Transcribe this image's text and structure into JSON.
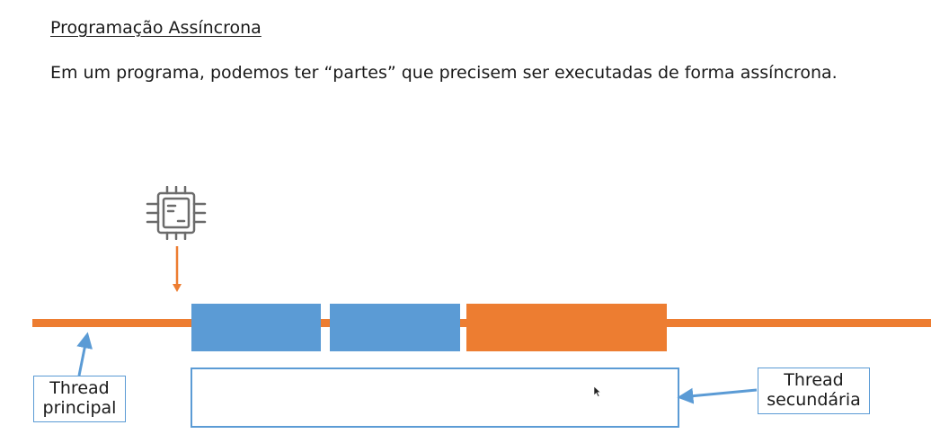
{
  "slide": {
    "title": "Programação Assíncrona",
    "body": "Em um programa, podemos ter “partes” que precisem ser executadas de forma assíncrona."
  },
  "diagram": {
    "labels": {
      "main_thread": [
        "Thread",
        "principal"
      ],
      "secondary_thread": [
        "Thread",
        "secundária"
      ]
    },
    "icons": [
      "cpu-chip-icon",
      "down-arrow-icon",
      "mouse-cursor-icon"
    ],
    "colors": {
      "timeline": "#ed7d31",
      "task_blue": "#5b9bd5",
      "task_orange": "#ed7d31",
      "connector": "#5b9bd5",
      "icon_gray": "#6b6b6b"
    }
  }
}
